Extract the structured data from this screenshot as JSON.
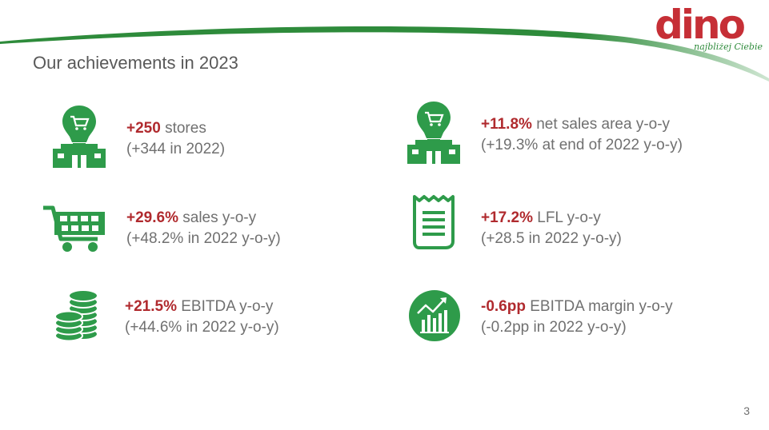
{
  "logo": {
    "word": "dino",
    "tagline": "najbliżej Ciebie"
  },
  "title": "Our achievements in 2023",
  "items": [
    {
      "highlight": "+250",
      "rest": " stores",
      "sub": "(+344 in 2022)",
      "icon": "store-icon"
    },
    {
      "highlight": "+11.8%",
      "rest": " net sales area y-o-y",
      "sub": "(+19.3% at end of 2022 y-o-y)",
      "icon": "store-icon"
    },
    {
      "highlight": "+29.6%",
      "rest": " sales y-o-y",
      "sub": "(+48.2% in 2022 y-o-y)",
      "icon": "shopping-cart-icon"
    },
    {
      "highlight": "+17.2%",
      "rest": " LFL y-o-y",
      "sub": "(+28.5 in 2022 y-o-y)",
      "icon": "receipt-icon"
    },
    {
      "highlight": "+21.5%",
      "rest": " EBITDA y-o-y",
      "sub": "(+44.6% in 2022 y-o-y)",
      "icon": "coin-stack-icon"
    },
    {
      "highlight": "-0.6pp",
      "rest": " EBITDA margin y-o-y",
      "sub": "(-0.2pp in 2022 y-o-y)",
      "icon": "growth-chart-icon"
    }
  ],
  "page_number": "3",
  "colors": {
    "accent_green": "#2e9b4a",
    "highlight_red": "#b02a2e",
    "text_gray": "#707070"
  }
}
